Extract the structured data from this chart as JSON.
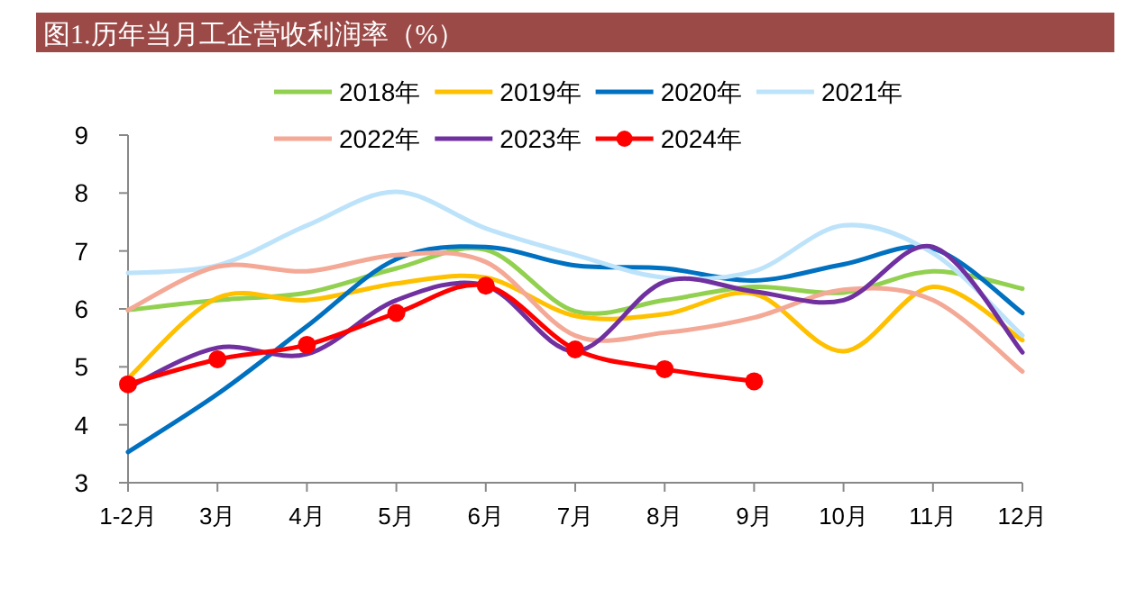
{
  "chart_data": {
    "type": "line",
    "title": "图1.历年当月工企营收利润率（%）",
    "categories": [
      "1-2月",
      "3月",
      "4月",
      "5月",
      "6月",
      "7月",
      "8月",
      "9月",
      "10月",
      "11月",
      "12月"
    ],
    "ylim": [
      3,
      9
    ],
    "yticks": [
      3,
      4,
      5,
      6,
      7,
      8,
      9
    ],
    "grid": false,
    "legend": "top",
    "series": [
      {
        "name": "2018年",
        "color": "#92d050",
        "values": [
          5.98,
          6.15,
          6.28,
          6.7,
          7.02,
          5.96,
          6.15,
          6.38,
          6.28,
          6.65,
          6.35
        ]
      },
      {
        "name": "2019年",
        "color": "#ffc000",
        "values": [
          4.8,
          6.19,
          6.15,
          6.44,
          6.54,
          5.88,
          5.91,
          6.26,
          5.27,
          6.38,
          5.46
        ]
      },
      {
        "name": "2020年",
        "color": "#0070c0",
        "values": [
          3.53,
          4.53,
          5.7,
          6.86,
          7.07,
          6.75,
          6.7,
          6.49,
          6.77,
          7.04,
          5.93
        ]
      },
      {
        "name": "2021年",
        "color": "#bde3fb",
        "values": [
          6.62,
          6.75,
          7.44,
          8.02,
          7.39,
          6.93,
          6.54,
          6.65,
          7.44,
          6.96,
          5.54
        ]
      },
      {
        "name": "2022年",
        "color": "#f4a896",
        "values": [
          5.98,
          6.73,
          6.65,
          6.93,
          6.81,
          5.54,
          5.59,
          5.85,
          6.33,
          6.15,
          4.92
        ]
      },
      {
        "name": "2023年",
        "color": "#7030a0",
        "values": [
          4.64,
          5.33,
          5.22,
          6.15,
          6.4,
          5.27,
          6.47,
          6.3,
          6.15,
          7.07,
          5.25
        ]
      },
      {
        "name": "2024年",
        "color": "#ff0000",
        "marker": "circle",
        "values": [
          4.7,
          5.13,
          5.38,
          5.93,
          6.4,
          5.3,
          4.96,
          4.75,
          null,
          null,
          null
        ]
      }
    ]
  }
}
